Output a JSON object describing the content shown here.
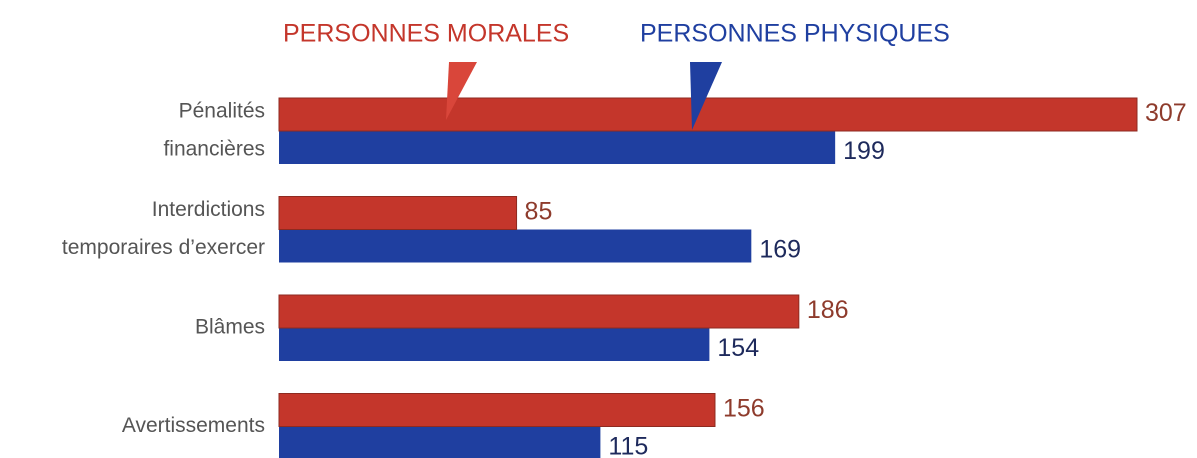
{
  "chart_data": {
    "type": "bar",
    "orientation": "horizontal",
    "categories": [
      [
        "Pénalités",
        "financières"
      ],
      [
        "Interdictions",
        "temporaires d’exercer"
      ],
      [
        "Blâmes"
      ],
      [
        "Avertissements"
      ]
    ],
    "series": [
      {
        "name": "PERSONNES MORALES",
        "color": "#c4362b",
        "values": [
          307,
          85,
          186,
          156
        ]
      },
      {
        "name": "PERSONNES PHYSIQUES",
        "color": "#1f3fa0",
        "values": [
          199,
          169,
          154,
          115
        ]
      }
    ]
  }
}
